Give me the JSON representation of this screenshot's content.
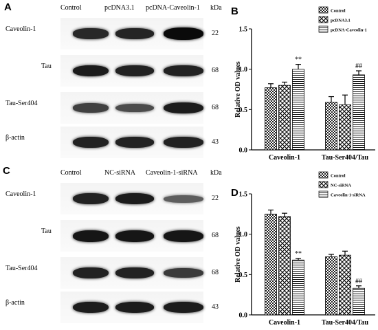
{
  "panels": {
    "A": {
      "letter": "A",
      "lanes": [
        "Control",
        "pcDNA3.1",
        "pcDNA-Caveolin-1"
      ],
      "kda_label": "kDa",
      "rows": [
        {
          "label": "Caveolin-1",
          "mw": "22",
          "intensity": [
            0.75,
            0.78,
            1.0
          ]
        },
        {
          "label": "Tau",
          "mw": "68",
          "intensity": [
            0.85,
            0.8,
            0.8
          ]
        },
        {
          "label": "Tau-Ser404",
          "mw": "68",
          "intensity": [
            0.55,
            0.45,
            0.85
          ]
        },
        {
          "label": "β-actin",
          "mw": "43",
          "intensity": [
            0.8,
            0.8,
            0.8
          ]
        }
      ]
    },
    "C": {
      "letter": "C",
      "lanes": [
        "Control",
        "NC-siRNA",
        "Caveolin-1-siRNA"
      ],
      "kda_label": "kDa",
      "rows": [
        {
          "label": "Caveolin-1",
          "mw": "22",
          "intensity": [
            0.8,
            0.85,
            0.3
          ]
        },
        {
          "label": "Tau",
          "mw": "68",
          "intensity": [
            0.9,
            0.9,
            0.9
          ]
        },
        {
          "label": "Tau-Ser404",
          "mw": "68",
          "intensity": [
            0.8,
            0.8,
            0.6
          ]
        },
        {
          "label": "β-actin",
          "mw": "43",
          "intensity": [
            0.85,
            0.85,
            0.85
          ]
        }
      ]
    }
  },
  "chart_data": [
    {
      "letter": "B",
      "type": "bar",
      "categories": [
        "Caveolin-1",
        "Tau-Ser404/Tau"
      ],
      "ylabel": "Relative  OD values",
      "ylim": [
        0,
        1.5
      ],
      "yticks": [
        "0.0",
        "0.5",
        "1.0",
        "1.5"
      ],
      "legend_position": "top-right",
      "series": [
        {
          "name": "Control",
          "pattern": "check",
          "values": [
            0.77,
            0.59
          ],
          "errors": [
            0.05,
            0.07
          ],
          "annotations": [
            "",
            ""
          ]
        },
        {
          "name": "pcDNA3.1",
          "pattern": "diamond",
          "values": [
            0.8,
            0.56
          ],
          "errors": [
            0.04,
            0.12
          ],
          "annotations": [
            "",
            ""
          ]
        },
        {
          "name": "pcDNA-Caveolin-1",
          "pattern": "hline",
          "values": [
            1.0,
            0.93
          ],
          "errors": [
            0.06,
            0.05
          ],
          "annotations": [
            "**",
            "##"
          ]
        }
      ]
    },
    {
      "letter": "D",
      "type": "bar",
      "categories": [
        "Caveolin-1",
        "Tau-Ser404/Tau"
      ],
      "ylabel": "Relative  OD values",
      "ylim": [
        0,
        1.5
      ],
      "yticks": [
        "0.0",
        "0.5",
        "1.0",
        "1.5"
      ],
      "legend_position": "top-right",
      "series": [
        {
          "name": "Control",
          "pattern": "check",
          "values": [
            1.25,
            0.72
          ],
          "errors": [
            0.05,
            0.03
          ],
          "annotations": [
            "",
            ""
          ]
        },
        {
          "name": "NC-siRNA",
          "pattern": "diamond",
          "values": [
            1.22,
            0.74
          ],
          "errors": [
            0.04,
            0.05
          ],
          "annotations": [
            "",
            ""
          ]
        },
        {
          "name": "Caveolin-1-siRNA",
          "pattern": "hline",
          "values": [
            0.68,
            0.33
          ],
          "errors": [
            0.02,
            0.03
          ],
          "annotations": [
            "**",
            "##"
          ]
        }
      ]
    }
  ]
}
